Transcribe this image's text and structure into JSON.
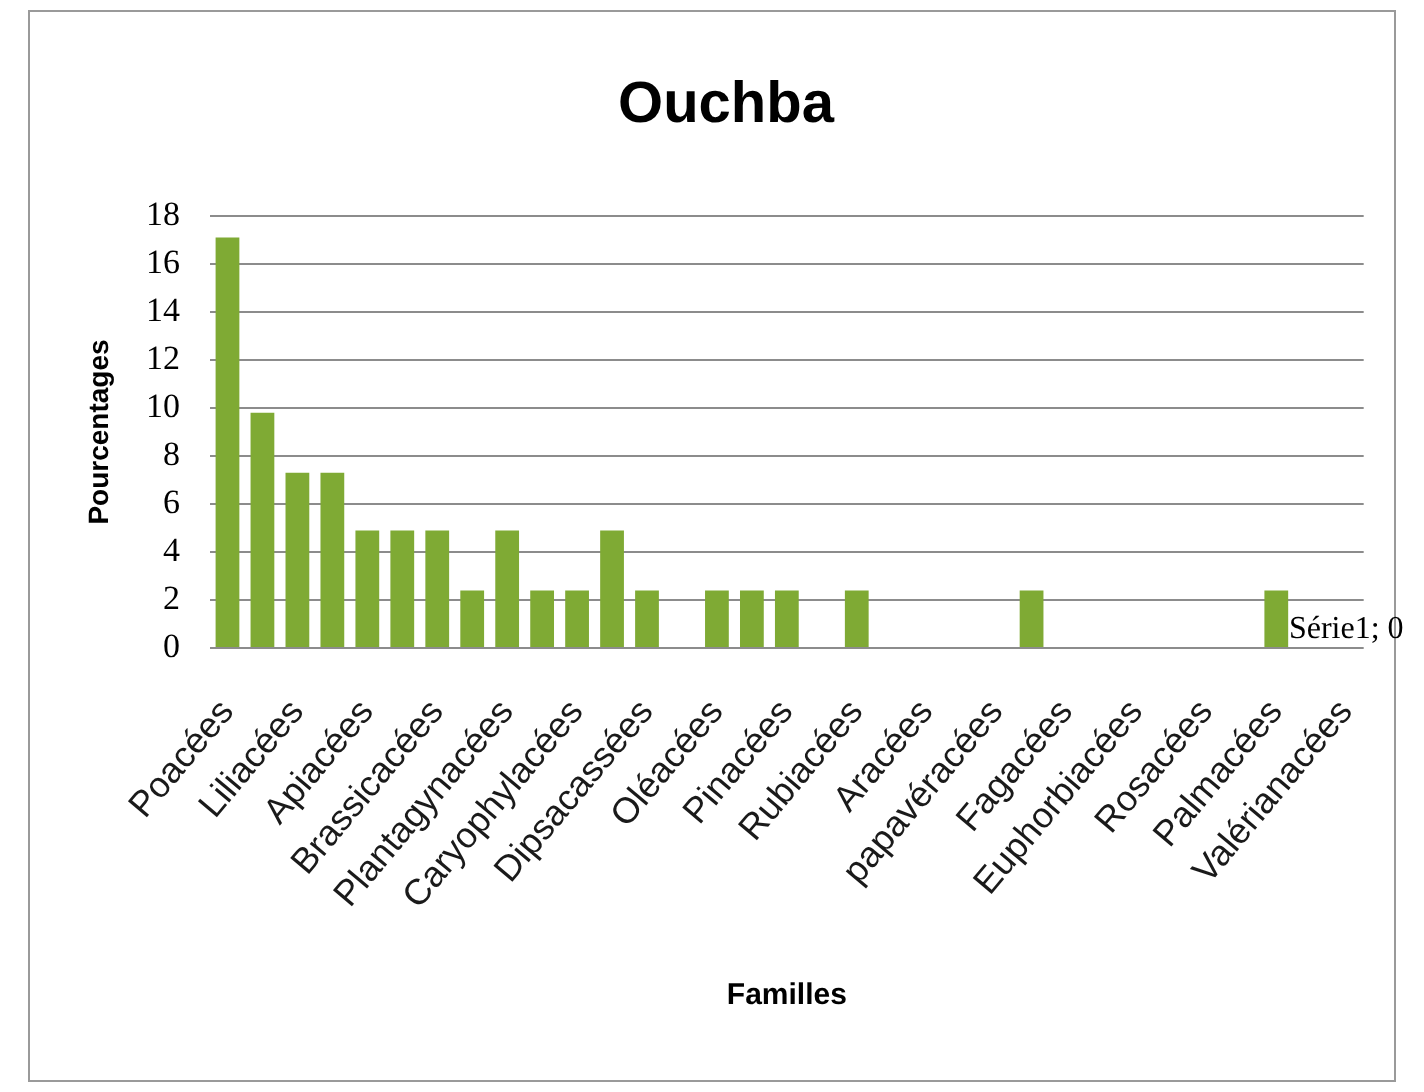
{
  "chart_data": {
    "type": "bar",
    "title": "Ouchba",
    "xlabel": "Familles",
    "ylabel": "Pourcentages",
    "categories": [
      "Poacées",
      null,
      "Liliacées",
      null,
      "Apiacées",
      null,
      "Brassicacées",
      null,
      "Plantagynacées",
      null,
      "Caryophylacées",
      null,
      "Dipsacassées",
      null,
      "Oléacées",
      null,
      "Pinacées",
      null,
      "Rubiacées",
      null,
      "Aracées",
      null,
      "papavéracées",
      null,
      "Fagacées",
      null,
      "Euphorbiacées",
      null,
      "Rosacées",
      null,
      "Palmacées",
      null,
      "Valérianacées"
    ],
    "values": [
      17.1,
      9.8,
      7.3,
      7.3,
      4.9,
      4.9,
      4.9,
      2.4,
      4.9,
      2.4,
      2.4,
      4.9,
      2.4,
      0,
      2.4,
      2.4,
      2.4,
      0,
      2.4,
      0,
      0,
      0,
      0,
      2.4,
      0,
      0,
      0,
      0,
      0,
      0,
      2.4,
      0,
      0
    ],
    "value_labels": [
      null,
      null,
      null,
      null,
      null,
      null,
      null,
      null,
      null,
      null,
      null,
      null,
      null,
      null,
      null,
      null,
      null,
      null,
      null,
      null,
      null,
      null,
      null,
      null,
      null,
      null,
      null,
      null,
      null,
      null,
      null,
      null,
      "Série1; 0"
    ],
    "color": "#7faa34",
    "ylim": [
      0,
      18
    ],
    "yticks": [
      0,
      2,
      4,
      6,
      8,
      10,
      12,
      14,
      16,
      18
    ],
    "grid": "y"
  }
}
